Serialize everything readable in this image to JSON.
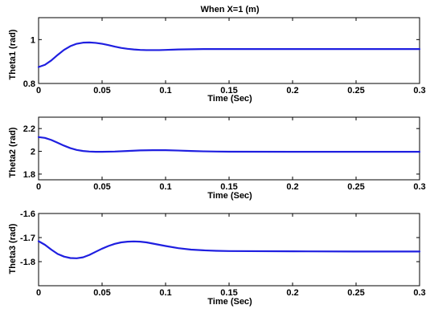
{
  "chart_data": [
    {
      "type": "line",
      "title": "When X=1 (m)",
      "xlabel": "Time (Sec)",
      "ylabel": "Theta1 (rad)",
      "xlim": [
        0,
        0.3
      ],
      "ylim": [
        0.8,
        1.1
      ],
      "xticks": [
        0,
        0.05,
        0.1,
        0.15,
        0.2,
        0.25,
        0.3
      ],
      "xtick_labels": [
        "0",
        "0.05",
        "0.1",
        "0.15",
        "0.2",
        "0.25",
        "0.3"
      ],
      "yticks": [
        0.8,
        1
      ],
      "ytick_labels": [
        "0.8",
        "1"
      ],
      "grid": false,
      "color": "#1f1fe0",
      "x": [
        0,
        0.005,
        0.01,
        0.015,
        0.02,
        0.025,
        0.03,
        0.035,
        0.04,
        0.045,
        0.05,
        0.055,
        0.06,
        0.065,
        0.07,
        0.075,
        0.08,
        0.085,
        0.09,
        0.095,
        0.1,
        0.11,
        0.12,
        0.13,
        0.14,
        0.15,
        0.2,
        0.25,
        0.3
      ],
      "y": [
        0.875,
        0.885,
        0.905,
        0.93,
        0.953,
        0.97,
        0.981,
        0.986,
        0.987,
        0.985,
        0.981,
        0.975,
        0.968,
        0.962,
        0.958,
        0.955,
        0.953,
        0.952,
        0.952,
        0.952,
        0.953,
        0.955,
        0.956,
        0.957,
        0.957,
        0.957,
        0.957,
        0.957,
        0.957
      ]
    },
    {
      "type": "line",
      "title": "",
      "xlabel": "Time (Sec)",
      "ylabel": "Theta2 (rad)",
      "xlim": [
        0,
        0.3
      ],
      "ylim": [
        1.75,
        2.3
      ],
      "xticks": [
        0,
        0.05,
        0.1,
        0.15,
        0.2,
        0.25,
        0.3
      ],
      "xtick_labels": [
        "0",
        "0.05",
        "0.1",
        "0.15",
        "0.2",
        "0.25",
        "0.3"
      ],
      "yticks": [
        1.8,
        2,
        2.2
      ],
      "ytick_labels": [
        "1.8",
        "2",
        "2.2"
      ],
      "grid": false,
      "color": "#1f1fe0",
      "x": [
        0,
        0.005,
        0.01,
        0.015,
        0.02,
        0.025,
        0.03,
        0.035,
        0.04,
        0.045,
        0.05,
        0.06,
        0.07,
        0.08,
        0.09,
        0.1,
        0.11,
        0.12,
        0.13,
        0.14,
        0.15,
        0.2,
        0.25,
        0.3
      ],
      "y": [
        2.125,
        2.118,
        2.1,
        2.075,
        2.05,
        2.028,
        2.012,
        2.003,
        1.998,
        1.996,
        1.996,
        1.998,
        2.003,
        2.008,
        2.01,
        2.01,
        2.007,
        2.003,
        2.0,
        1.998,
        1.997,
        1.996,
        1.996,
        1.996
      ]
    },
    {
      "type": "line",
      "title": "",
      "xlabel": "Time (Sec)",
      "ylabel": "Theta3 (rad)",
      "xlim": [
        0,
        0.3
      ],
      "ylim": [
        -1.9,
        -1.6
      ],
      "xticks": [
        0,
        0.05,
        0.1,
        0.15,
        0.2,
        0.25,
        0.3
      ],
      "xtick_labels": [
        "0",
        "0.05",
        "0.1",
        "0.15",
        "0.2",
        "0.25",
        "0.3"
      ],
      "yticks": [
        -1.8,
        -1.7,
        -1.6
      ],
      "ytick_labels": [
        "-1.8",
        "-1.7",
        "-1.6"
      ],
      "grid": false,
      "color": "#1f1fe0",
      "x": [
        0,
        0.005,
        0.01,
        0.015,
        0.02,
        0.025,
        0.03,
        0.035,
        0.04,
        0.045,
        0.05,
        0.055,
        0.06,
        0.065,
        0.07,
        0.075,
        0.08,
        0.085,
        0.09,
        0.1,
        0.11,
        0.12,
        0.13,
        0.14,
        0.15,
        0.2,
        0.25,
        0.3
      ],
      "y": [
        -1.715,
        -1.73,
        -1.75,
        -1.768,
        -1.779,
        -1.785,
        -1.786,
        -1.782,
        -1.772,
        -1.759,
        -1.746,
        -1.735,
        -1.726,
        -1.72,
        -1.717,
        -1.716,
        -1.717,
        -1.72,
        -1.725,
        -1.735,
        -1.744,
        -1.75,
        -1.753,
        -1.755,
        -1.756,
        -1.757,
        -1.758,
        -1.758
      ]
    }
  ]
}
